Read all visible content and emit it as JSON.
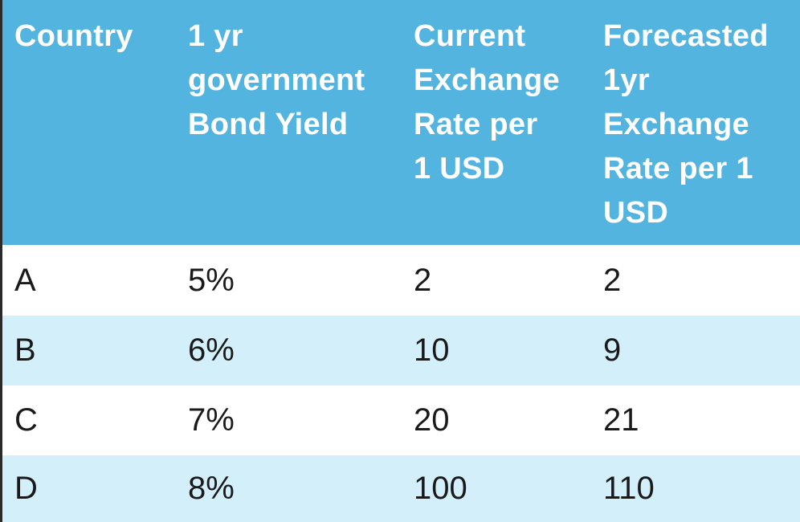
{
  "table": {
    "headers": [
      [
        "Country"
      ],
      [
        "1 yr",
        "government",
        "Bond Yield"
      ],
      [
        "Current",
        "Exchange",
        "Rate per",
        "1 USD"
      ],
      [
        "Forecasted",
        "1yr",
        "Exchange",
        "Rate per 1",
        "USD"
      ]
    ],
    "rows": [
      [
        "A",
        "5%",
        "2",
        "2"
      ],
      [
        "B",
        "6%",
        "10",
        "9"
      ],
      [
        "C",
        "7%",
        "20",
        "21"
      ],
      [
        "D",
        "8%",
        "100",
        "110"
      ]
    ]
  },
  "colors": {
    "header_bg": "#53b4df",
    "header_text": "#ffffff",
    "row_alt_bg": "#d3f0fa",
    "row_bg": "#ffffff",
    "cell_text": "#1a1a1a"
  }
}
